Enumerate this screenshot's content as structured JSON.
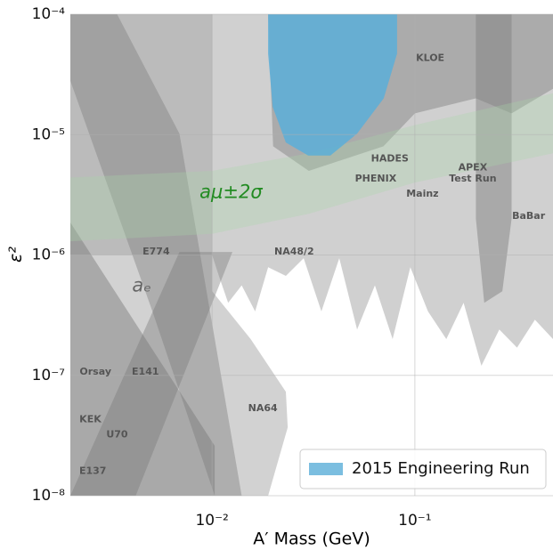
{
  "chart_data": {
    "type": "exclusion",
    "xlabel": "A′ Mass (GeV)",
    "ylabel": "ε²",
    "xscale": "log",
    "yscale": "log",
    "xlim": [
      0.002,
      0.48
    ],
    "ylim": [
      1e-08,
      0.0001
    ],
    "xticks": [
      {
        "value": 0.01,
        "label": "10⁻²"
      },
      {
        "value": 0.1,
        "label": "10⁻¹"
      }
    ],
    "yticks": [
      {
        "value": 1e-08,
        "label": "10⁻⁸"
      },
      {
        "value": 1e-07,
        "label": "10⁻⁷"
      },
      {
        "value": 1e-06,
        "label": "10⁻⁶"
      },
      {
        "value": 1e-05,
        "label": "10⁻⁵"
      },
      {
        "value": 0.0001,
        "label": "10⁻⁴"
      }
    ],
    "grid": true,
    "legend_loc": "lower right",
    "regions": [
      {
        "color": "rgba(200,200,200,0.85)",
        "x": [
          0.002,
          0.48,
          0.48,
          0.391,
          0.319,
          0.261,
          0.213,
          0.174,
          0.143,
          0.116,
          0.095,
          0.0777,
          0.0635,
          0.0519,
          0.0424,
          0.0346,
          0.0283,
          0.0231,
          0.0189,
          0.0163,
          0.014,
          0.012,
          0.0108,
          0.01,
          0.002
        ],
        "y": [
          0.0001,
          0.0001,
          2e-07,
          2.9e-07,
          1.7e-07,
          2.4e-07,
          1.2e-07,
          4e-07,
          2e-07,
          3.4e-07,
          7.9e-07,
          2e-07,
          5.6e-07,
          2.4e-07,
          9.4e-07,
          3.4e-07,
          9.4e-07,
          6.7e-07,
          7.9e-07,
          3.4e-07,
          5.6e-07,
          4e-07,
          6.7e-07,
          1e-06,
          1e-06
        ]
      },
      {
        "color": "rgba(165,165,165,0.5)",
        "x": [
          0.002,
          0.01,
          0.01,
          0.0155,
          0.0231,
          0.0236,
          0.0189,
          0.002
        ],
        "y": [
          0.0001,
          0.0001,
          5e-07,
          2e-07,
          7.3e-08,
          3.7e-08,
          1e-08,
          1e-08
        ]
      },
      {
        "color": "rgba(130,130,130,0.45)",
        "x": [
          0.002,
          0.0034,
          0.0069,
          0.014,
          0.0103,
          0.00508,
          0.002
        ],
        "y": [
          0.0001,
          0.0001,
          1.02e-05,
          1e-08,
          1e-08,
          3.4e-07,
          2.8e-05
        ]
      },
      {
        "color": "rgba(120,120,120,0.45)",
        "x": [
          0.002,
          0.0103,
          0.0103,
          0.002
        ],
        "y": [
          1.86e-06,
          2.6e-08,
          1e-08,
          1e-08
        ]
      },
      {
        "color": "rgba(120,120,120,0.4)",
        "x": [
          0.002,
          0.0042,
          0.0126,
          0.0069
        ],
        "y": [
          1e-08,
          1e-08,
          1.06e-06,
          1.06e-06
        ]
      },
      {
        "color": "rgba(140,140,140,0.55)",
        "x": [
          0.0189,
          0.48,
          0.48,
          0.3,
          0.2,
          0.1,
          0.07,
          0.03,
          0.02
        ],
        "y": [
          0.0001,
          0.0001,
          2.4e-05,
          1.5e-05,
          2e-05,
          1.5e-05,
          8e-06,
          5e-06,
          8e-06
        ]
      },
      {
        "color": "rgba(130,130,130,0.5)",
        "x": [
          0.2,
          0.3,
          0.3,
          0.27,
          0.22,
          0.2
        ],
        "y": [
          0.0001,
          0.0001,
          2e-06,
          5e-07,
          4e-07,
          2e-06
        ]
      },
      {
        "color": "rgba(170,215,170,0.3)",
        "x": [
          0.002,
          0.01,
          0.03,
          0.1,
          0.48,
          0.48,
          0.1,
          0.03,
          0.01,
          0.002
        ],
        "y": [
          4.4e-06,
          5e-06,
          7e-06,
          1.2e-05,
          2.2e-05,
          7e-06,
          4e-06,
          2.2e-06,
          1.5e-06,
          1.3e-06
        ]
      }
    ],
    "series": [
      {
        "name": "2015 Engineering Run",
        "color": "#5aaed8",
        "x": [
          0.0189,
          0.0817,
          0.0817,
          0.0702,
          0.0519,
          0.0383,
          0.0298,
          0.0231,
          0.0199,
          0.0189
        ],
        "y": [
          0.0001,
          0.0001,
          4.7e-05,
          2e-05,
          1.02e-05,
          6.7e-06,
          6.7e-06,
          8.6e-06,
          1.7e-05,
          4.7e-05
        ]
      }
    ],
    "annotations": [
      {
        "text": "KLOE",
        "x": 0.119,
        "y": 4.3e-05
      },
      {
        "text": "HADES",
        "x": 0.0753,
        "y": 6.3e-06
      },
      {
        "text": "PHENIX",
        "x": 0.0641,
        "y": 4.3e-06
      },
      {
        "text": "APEX",
        "x": 0.193,
        "y": 5.3e-06
      },
      {
        "text": "Test Run",
        "x": 0.193,
        "y": 4.3e-06
      },
      {
        "text": "Mainz",
        "x": 0.109,
        "y": 3.2e-06
      },
      {
        "text": "BaBar",
        "x": 0.364,
        "y": 2.1e-06
      },
      {
        "text": "NA48/2",
        "x": 0.0254,
        "y": 1.06e-06
      },
      {
        "text": "E774",
        "x": 0.0053,
        "y": 1.06e-06
      },
      {
        "text": "Orsay",
        "x": 0.00266,
        "y": 1.07e-07
      },
      {
        "text": "E141",
        "x": 0.00469,
        "y": 1.07e-07
      },
      {
        "text": "KEK",
        "x": 0.00251,
        "y": 4.3e-08
      },
      {
        "text": "U70",
        "x": 0.0034,
        "y": 3.2e-08
      },
      {
        "text": "E137",
        "x": 0.00258,
        "y": 1.6e-08
      },
      {
        "text": "NA64",
        "x": 0.0178,
        "y": 5.3e-08
      }
    ],
    "math_annotations": [
      {
        "text": "aₑ",
        "x": 0.0045,
        "y": 5.5e-07,
        "color": "#666666"
      },
      {
        "text": "aμ±2σ",
        "x": 0.0124,
        "y": 3.3e-06,
        "color": "#228b22"
      }
    ]
  }
}
